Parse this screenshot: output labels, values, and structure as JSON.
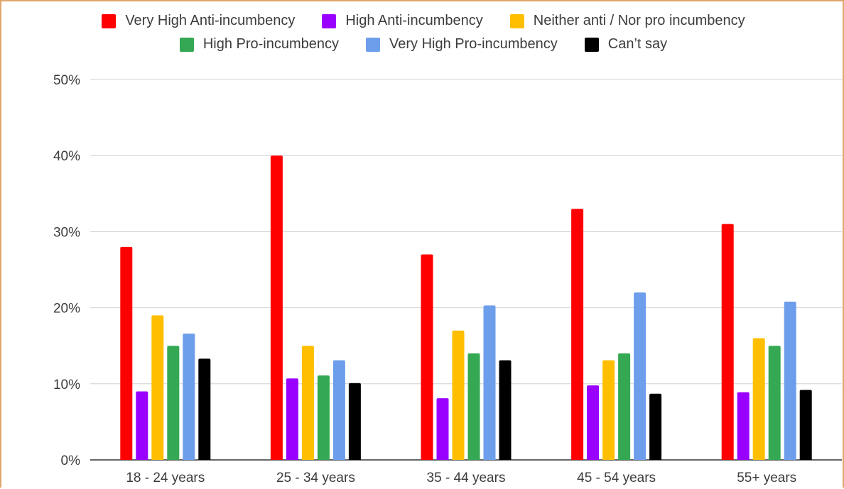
{
  "chart_data": {
    "type": "bar",
    "title": "",
    "xlabel": "",
    "ylabel": "",
    "ylim": [
      0,
      50
    ],
    "y_ticks": [
      "0%",
      "10%",
      "20%",
      "30%",
      "40%",
      "50%"
    ],
    "grid": true,
    "legend_position": "top",
    "categories": [
      "18 - 24 years",
      "25 - 34 years",
      "35 - 44 years",
      "45 - 54 years",
      "55+ years"
    ],
    "series": [
      {
        "name": "Very High Anti-incumbency",
        "color": "#ff0000",
        "values": [
          28,
          40,
          27,
          33,
          31
        ]
      },
      {
        "name": "High Anti-incumbency",
        "color": "#9900ff",
        "values": [
          9,
          10.7,
          8.1,
          9.8,
          8.9
        ]
      },
      {
        "name": "Neither anti / Nor pro incumbency",
        "color": "#ffbf00",
        "values": [
          19,
          15,
          17,
          13.1,
          16
        ]
      },
      {
        "name": "High Pro-incumbency",
        "color": "#34a853",
        "values": [
          15,
          11.1,
          14,
          14,
          15
        ]
      },
      {
        "name": "Very High Pro-incumbency",
        "color": "#6d9eeb",
        "values": [
          16.6,
          13.1,
          20.3,
          22,
          20.8
        ]
      },
      {
        "name": "Can’t say",
        "color": "#000000",
        "values": [
          13.3,
          10.1,
          13.1,
          8.7,
          9.2
        ]
      }
    ]
  }
}
